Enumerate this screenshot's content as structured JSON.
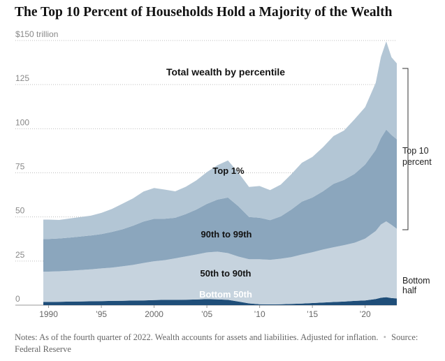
{
  "title": "The Top 10 Percent of Households Hold a Majority of the Wealth",
  "notes": {
    "text": "Notes: As of the fourth quarter of 2022. Wealth accounts for assets and liabilities. Adjusted for inflation.",
    "source": "Source: Federal Reserve"
  },
  "colors": {
    "bottom50": "#1f4e79",
    "p50_90": "#c6d3de",
    "p90_99": "#8ba6bd",
    "top1": "#b3c6d5"
  },
  "chart_data": {
    "type": "area",
    "stacked": true,
    "title": "Total wealth by percentile",
    "y_unit": "trillion",
    "ylim": [
      0,
      150
    ],
    "yticks": [
      0,
      25,
      50,
      75,
      100,
      125,
      150
    ],
    "ytick_labels": [
      "0",
      "25",
      "50",
      "75",
      "100",
      "125",
      "$150 trillion"
    ],
    "xlim": [
      1989.5,
      2023
    ],
    "xticks": [
      1990,
      1995,
      2000,
      2005,
      2010,
      2015,
      2020
    ],
    "xtick_labels": [
      "1990",
      "’95",
      "2000",
      "’05",
      "’10",
      "’15",
      "’20"
    ],
    "grid": true,
    "x": [
      1989.5,
      1990,
      1991,
      1992,
      1993,
      1994,
      1995,
      1996,
      1997,
      1998,
      1999,
      2000,
      2001,
      2002,
      2003,
      2004,
      2005,
      2006,
      2007,
      2008,
      2009,
      2010,
      2011,
      2012,
      2013,
      2014,
      2015,
      2016,
      2017,
      2018,
      2019,
      2020,
      2021,
      2021.5,
      2022,
      2022.5,
      2023
    ],
    "series": [
      {
        "name": "Bottom 50th",
        "values": [
          1.8,
          1.8,
          1.9,
          2.0,
          2.1,
          2.2,
          2.3,
          2.4,
          2.5,
          2.6,
          2.7,
          2.9,
          3.0,
          3.0,
          3.1,
          3.2,
          3.4,
          3.3,
          3.0,
          2.0,
          1.0,
          0.5,
          0.4,
          0.5,
          0.7,
          0.9,
          1.2,
          1.5,
          1.8,
          2.0,
          2.4,
          2.7,
          3.5,
          4.2,
          4.5,
          4.0,
          3.8
        ]
      },
      {
        "name": "50th to 90th",
        "values": [
          17.2,
          17.2,
          17.3,
          17.5,
          17.8,
          18.1,
          18.5,
          18.9,
          19.5,
          20.2,
          21.2,
          22.0,
          22.5,
          23.5,
          24.5,
          25.5,
          26.5,
          27.0,
          26.5,
          25.5,
          25.0,
          25.5,
          25.3,
          25.8,
          26.5,
          27.8,
          28.8,
          30.0,
          31.0,
          32.0,
          33.0,
          35.0,
          38.5,
          41.5,
          43.0,
          41.5,
          39.5
        ]
      },
      {
        "name": "90th to 99th",
        "values": [
          18.5,
          18.5,
          18.6,
          18.8,
          19.0,
          19.2,
          19.5,
          20.2,
          21.0,
          22.2,
          23.5,
          24.0,
          23.5,
          23.0,
          24.0,
          25.5,
          27.5,
          29.5,
          31.5,
          28.5,
          24.0,
          23.5,
          22.5,
          24.0,
          27.0,
          30.0,
          31.0,
          33.0,
          36.0,
          37.0,
          39.0,
          42.0,
          46.0,
          49.0,
          52.0,
          51.0,
          50.7
        ]
      },
      {
        "name": "Top 1%",
        "values": [
          11.0,
          11.0,
          10.5,
          10.8,
          11.0,
          11.2,
          12.0,
          13.0,
          14.5,
          15.5,
          17.0,
          17.5,
          16.5,
          15.0,
          15.5,
          16.5,
          18.0,
          19.5,
          21.0,
          19.0,
          17.0,
          18.0,
          17.0,
          18.0,
          20.0,
          22.0,
          23.0,
          25.0,
          27.0,
          28.0,
          31.0,
          32.5,
          38.0,
          46.0,
          50.0,
          44.0,
          43.0
        ]
      }
    ],
    "annotations": [
      "Top 10 percent",
      "Bottom half"
    ]
  }
}
